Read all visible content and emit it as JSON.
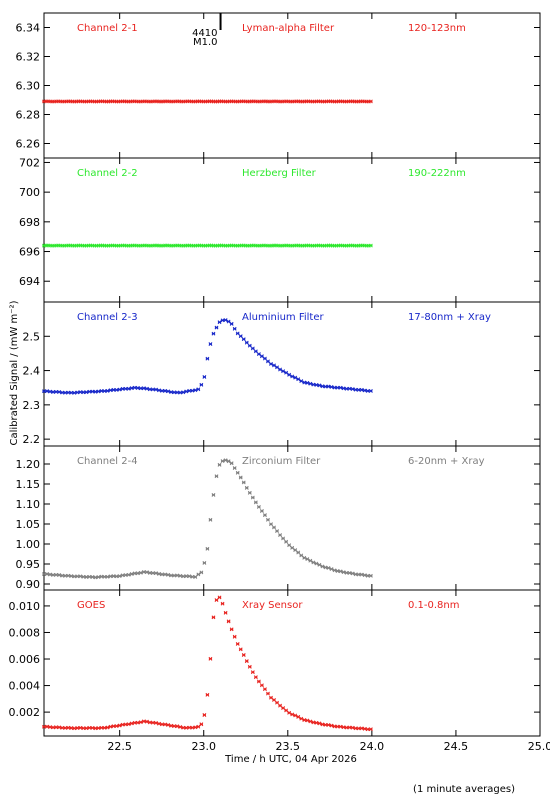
{
  "chart_data": {
    "type": "scatter",
    "xlabel": "Time / h UTC, 04 Apr 2026",
    "ylabel": "Calibrated Signal / (mW m⁻²)",
    "note": "(1 minute averages)",
    "xlim": [
      22.05,
      25.0
    ],
    "xticks": [
      "22.5",
      "23.0",
      "23.5",
      "24.0",
      "24.5",
      "25.0"
    ],
    "marker": {
      "x": 23.1,
      "label_top": "4410",
      "label_bottom": "M1.0"
    },
    "panels": [
      {
        "channel": "Channel 2-1",
        "filter": "Lyman-alpha Filter",
        "band": "120-123nm",
        "color": "#e8231f",
        "ylim": [
          6.25,
          6.35
        ],
        "yticks": [
          "6.26",
          "6.28",
          "6.30",
          "6.32",
          "6.34"
        ],
        "series": [
          {
            "x": [
              22.05,
              24.0
            ],
            "y": [
              6.289,
              6.289
            ]
          }
        ]
      },
      {
        "channel": "Channel 2-2",
        "filter": "Herzberg Filter",
        "band": "190-222nm",
        "color": "#2ee82e",
        "ylim": [
          692.6,
          702.3
        ],
        "yticks": [
          "694",
          "696",
          "698",
          "700",
          "702"
        ],
        "series": [
          {
            "x": [
              22.05,
              24.0
            ],
            "y": [
              696.4,
              696.4
            ]
          }
        ]
      },
      {
        "channel": "Channel 2-3",
        "filter": "Aluminium Filter",
        "band": "17-80nm + Xray",
        "color": "#1727c9",
        "ylim": [
          2.18,
          2.6
        ],
        "yticks": [
          "2.2",
          "2.3",
          "2.4",
          "2.5"
        ],
        "series": [
          {
            "x": [
              22.05,
              22.2,
              22.4,
              22.6,
              22.7,
              22.85,
              22.97,
              23.0,
              23.02,
              23.05,
              23.08,
              23.1,
              23.13,
              23.16,
              23.2,
              23.3,
              23.4,
              23.5,
              23.6,
              23.7,
              23.8,
              23.9,
              24.0
            ],
            "y": [
              2.34,
              2.335,
              2.34,
              2.35,
              2.345,
              2.335,
              2.345,
              2.37,
              2.43,
              2.5,
              2.53,
              2.545,
              2.548,
              2.54,
              2.51,
              2.46,
              2.42,
              2.39,
              2.365,
              2.355,
              2.35,
              2.345,
              2.34
            ]
          }
        ]
      },
      {
        "channel": "Channel 2-4",
        "filter": "Zirconium Filter",
        "band": "6-20nm + Xray",
        "color": "#7f7f7f",
        "ylim": [
          0.885,
          1.245
        ],
        "yticks": [
          "0.90",
          "0.95",
          "1.00",
          "1.05",
          "1.10",
          "1.15",
          "1.20"
        ],
        "series": [
          {
            "x": [
              22.05,
              22.2,
              22.35,
              22.5,
              22.65,
              22.8,
              22.95,
              22.99,
              23.02,
              23.04,
              23.06,
              23.08,
              23.1,
              23.13,
              23.16,
              23.2,
              23.3,
              23.4,
              23.5,
              23.6,
              23.7,
              23.8,
              23.9,
              24.0
            ],
            "y": [
              0.925,
              0.92,
              0.917,
              0.92,
              0.93,
              0.922,
              0.918,
              0.93,
              0.98,
              1.06,
              1.13,
              1.18,
              1.205,
              1.21,
              1.205,
              1.18,
              1.11,
              1.05,
              1.0,
              0.965,
              0.945,
              0.932,
              0.925,
              0.92
            ]
          }
        ]
      },
      {
        "channel": "GOES",
        "filter": "Xray Sensor",
        "band": "0.1-0.8nm",
        "color": "#e8231f",
        "ylim": [
          0.0002,
          0.0112
        ],
        "yticks": [
          "0.002",
          "0.004",
          "0.006",
          "0.008",
          "0.010"
        ],
        "series": [
          {
            "x": [
              22.05,
              22.2,
              22.4,
              22.55,
              22.65,
              22.75,
              22.9,
              22.98,
              23.0,
              23.02,
              23.04,
              23.06,
              23.08,
              23.1,
              23.13,
              23.16,
              23.2,
              23.25,
              23.3,
              23.4,
              23.5,
              23.6,
              23.7,
              23.8,
              23.9,
              24.0
            ],
            "y": [
              0.0009,
              0.0008,
              0.0008,
              0.0011,
              0.0013,
              0.0011,
              0.0008,
              0.0009,
              0.0015,
              0.003,
              0.006,
              0.0095,
              0.0107,
              0.0106,
              0.0095,
              0.0084,
              0.0072,
              0.006,
              0.0048,
              0.0031,
              0.002,
              0.0014,
              0.0011,
              0.0009,
              0.0008,
              0.0007
            ]
          }
        ]
      }
    ]
  }
}
